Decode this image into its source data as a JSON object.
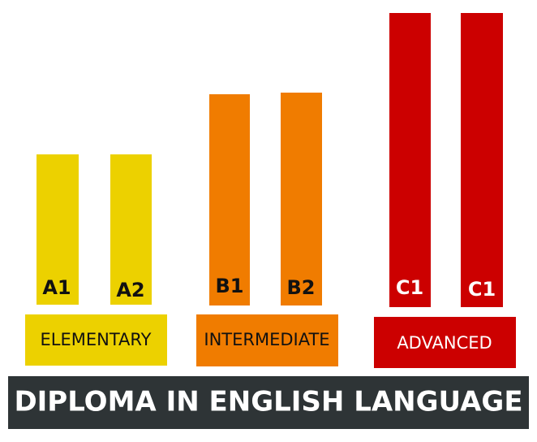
{
  "groups": [
    {
      "name": "ELEMENTARY",
      "levels": [
        "A1",
        "A2"
      ]
    },
    {
      "name": "INTERMEDIATE",
      "levels": [
        "B1",
        "B2"
      ]
    },
    {
      "name": "ADVANCED",
      "levels": [
        "C1",
        "C1"
      ]
    }
  ],
  "footer": "DIPLOMA IN ENGLISH LANGUAGE"
}
